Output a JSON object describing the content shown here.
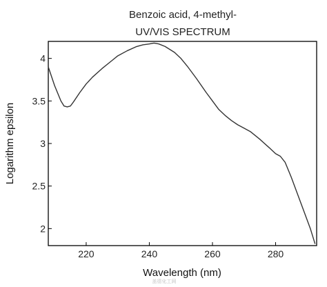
{
  "chart_data": {
    "type": "line",
    "title": "Benzoic acid, 4-methyl-",
    "subtitle": "UV/VIS SPECTRUM",
    "xlabel": "Wavelength (nm)",
    "ylabel": "Logarithm epsilon",
    "xlim": [
      208,
      293
    ],
    "ylim": [
      1.8,
      4.2
    ],
    "xticks": [
      220,
      240,
      260,
      280
    ],
    "yticks": [
      2,
      2.5,
      3,
      3.5,
      4
    ],
    "grid": false,
    "legend": "none",
    "line_color": "#333333",
    "watermark": "盖德化工网",
    "series": [
      {
        "x": [
          208,
          210,
          212,
          213,
          214,
          215,
          216,
          218,
          220,
          222,
          225,
          228,
          230,
          233,
          236,
          238,
          240,
          241.5,
          243,
          245,
          248,
          250,
          252,
          255,
          258,
          260,
          262,
          264,
          266,
          268,
          270,
          272,
          275,
          278,
          280,
          281.5,
          283,
          285,
          287,
          289,
          291,
          292.5
        ],
        "y": [
          3.9,
          3.68,
          3.5,
          3.44,
          3.43,
          3.44,
          3.49,
          3.6,
          3.7,
          3.78,
          3.88,
          3.97,
          4.03,
          4.09,
          4.14,
          4.16,
          4.17,
          4.18,
          4.17,
          4.14,
          4.07,
          4.0,
          3.91,
          3.76,
          3.6,
          3.5,
          3.4,
          3.33,
          3.27,
          3.22,
          3.18,
          3.14,
          3.05,
          2.95,
          2.88,
          2.85,
          2.78,
          2.6,
          2.4,
          2.2,
          2.0,
          1.82
        ]
      }
    ]
  }
}
